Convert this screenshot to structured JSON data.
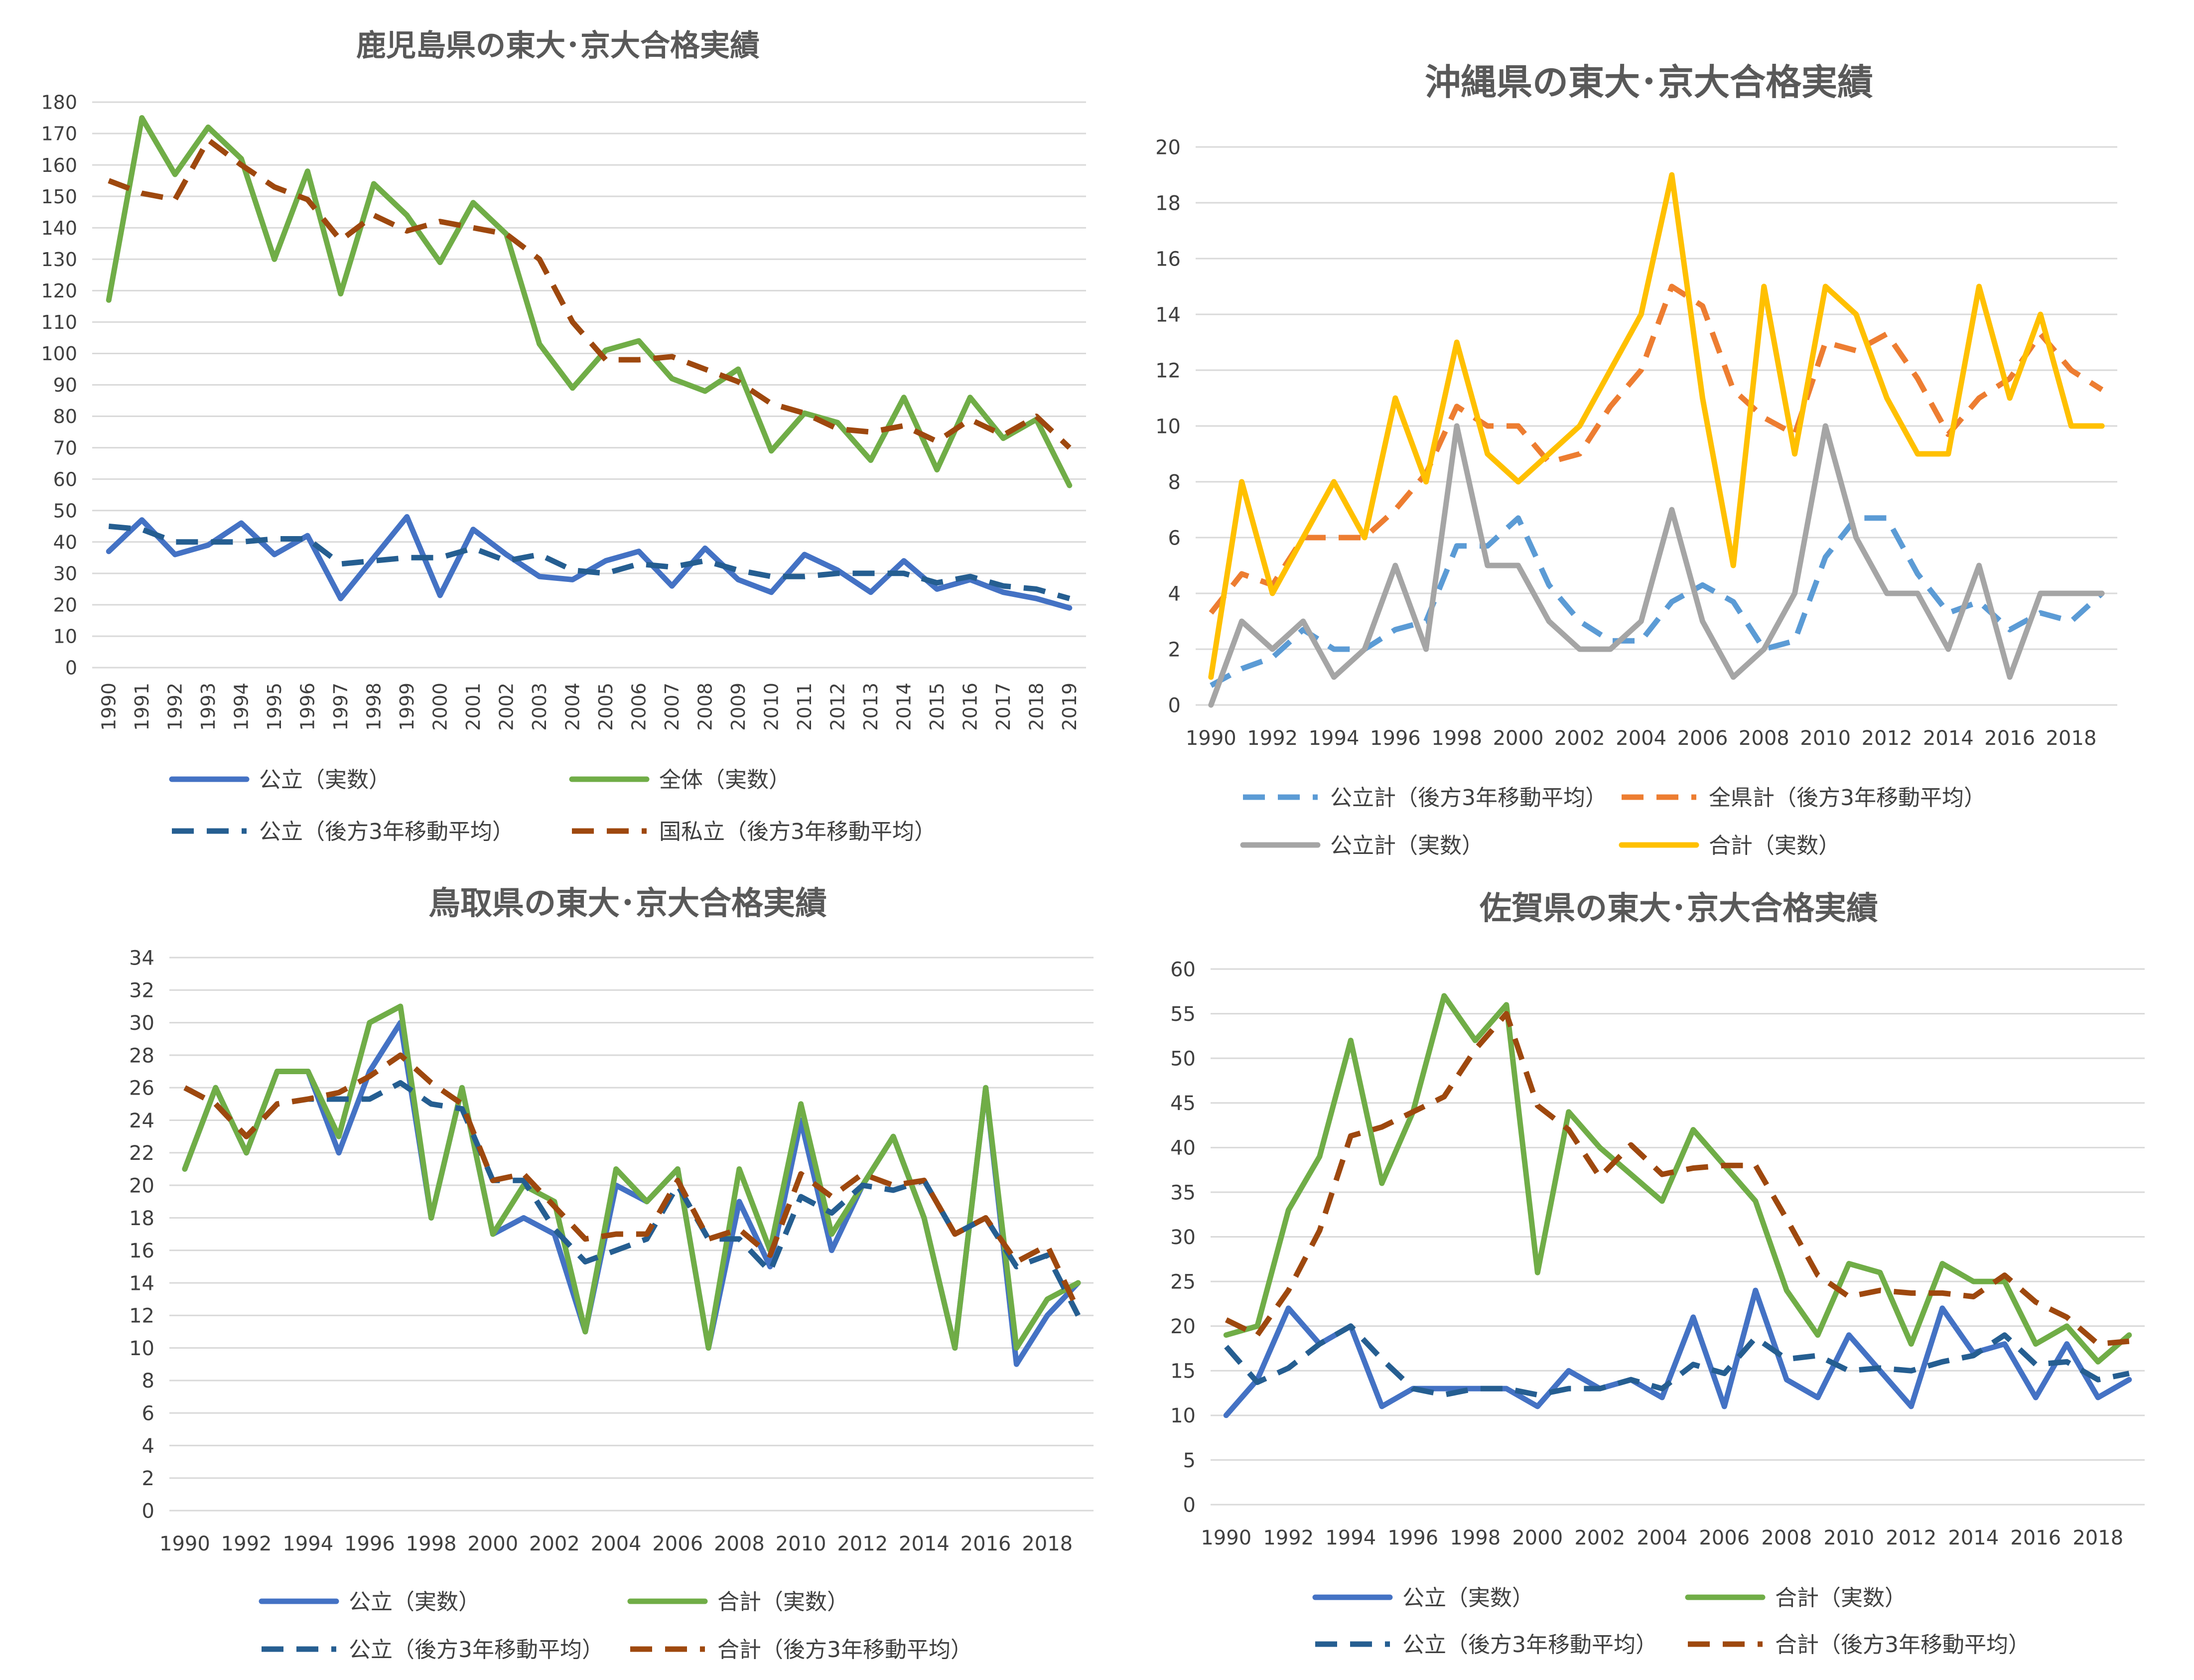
{
  "chart_data": [
    {
      "type": "line",
      "title": "鹿児島県の東大･京大合格実績",
      "x": [
        "1990",
        "1991",
        "1992",
        "1993",
        "1994",
        "1995",
        "1996",
        "1997",
        "1998",
        "1999",
        "2000",
        "2001",
        "2002",
        "2003",
        "2004",
        "2005",
        "2006",
        "2007",
        "2008",
        "2009",
        "2010",
        "2011",
        "2012",
        "2013",
        "2014",
        "2015",
        "2016",
        "2017",
        "2018",
        "2019"
      ],
      "x_tick_labels": [
        "1990",
        "1991",
        "1992",
        "1993",
        "1994",
        "1995",
        "1996",
        "1997",
        "1998",
        "1999",
        "2000",
        "2001",
        "2002",
        "2003",
        "2004",
        "2005",
        "2006",
        "2007",
        "2008",
        "2009",
        "2010",
        "2011",
        "2012",
        "2013",
        "2014",
        "2015",
        "2016",
        "2017",
        "2018",
        "2019"
      ],
      "y_ticks": [
        0,
        10,
        20,
        30,
        40,
        50,
        60,
        70,
        80,
        90,
        100,
        110,
        120,
        130,
        140,
        150,
        160,
        170,
        180
      ],
      "ylim": [
        0,
        180
      ],
      "grid": true,
      "legend_position": "bottom",
      "legend_columns": 2,
      "series": [
        {
          "name": "公立（実数）",
          "color": "#4472c4",
          "dash": "solid",
          "values": [
            37,
            47,
            36,
            39,
            46,
            36,
            42,
            22,
            35,
            48,
            23,
            44,
            36,
            29,
            28,
            34,
            37,
            26,
            38,
            28,
            24,
            36,
            31,
            24,
            34,
            25,
            28,
            24,
            22,
            19
          ]
        },
        {
          "name": "全体（実数）",
          "color": "#70ad47",
          "dash": "solid",
          "values": [
            117,
            175,
            157,
            172,
            162,
            130,
            158,
            119,
            154,
            144,
            129,
            148,
            138,
            103,
            89,
            101,
            104,
            92,
            88,
            95,
            69,
            81,
            78,
            66,
            86,
            63,
            86,
            73,
            79,
            58
          ]
        },
        {
          "name": "公立（後方3年移動平均）",
          "color": "#255e91",
          "dash": "dash",
          "values": [
            45,
            44,
            40,
            40,
            40,
            41,
            41,
            33,
            34,
            35,
            35,
            38,
            34,
            36,
            31,
            30,
            33,
            32,
            34,
            31,
            29,
            29,
            30,
            30,
            30,
            27,
            29,
            26,
            25,
            22
          ]
        },
        {
          "name": "国私立（後方3年移動平均）",
          "color": "#9e480e",
          "dash": "dash",
          "values": [
            155,
            151,
            149,
            168,
            160,
            153,
            149,
            136,
            144,
            139,
            142,
            140,
            138,
            130,
            110,
            98,
            98,
            99,
            95,
            91,
            84,
            81,
            76,
            75,
            77,
            72,
            79,
            74,
            80,
            70
          ]
        }
      ]
    },
    {
      "type": "line",
      "title": "沖縄県の東大･京大合格実績",
      "x": [
        "1990",
        "1991",
        "1992",
        "1993",
        "1994",
        "1995",
        "1996",
        "1997",
        "1998",
        "1999",
        "2000",
        "2001",
        "2002",
        "2003",
        "2004",
        "2005",
        "2006",
        "2007",
        "2008",
        "2009",
        "2010",
        "2011",
        "2012",
        "2013",
        "2014",
        "2015",
        "2016",
        "2017",
        "2018",
        "2019"
      ],
      "x_tick_labels": [
        "1990",
        "",
        "1992",
        "",
        "1994",
        "",
        "1996",
        "",
        "1998",
        "",
        "2000",
        "",
        "2002",
        "",
        "2004",
        "",
        "2006",
        "",
        "2008",
        "",
        "2010",
        "",
        "2012",
        "",
        "2014",
        "",
        "2016",
        "",
        "2018",
        ""
      ],
      "y_ticks": [
        0,
        2,
        4,
        6,
        8,
        10,
        12,
        14,
        16,
        18,
        20
      ],
      "ylim": [
        0,
        20
      ],
      "grid": true,
      "legend_position": "bottom",
      "legend_columns": 2,
      "series": [
        {
          "name": "公立計（後方3年移動平均）",
          "color": "#5b9bd5",
          "dash": "dash",
          "values": [
            0.7,
            1.3,
            1.7,
            2.7,
            2.0,
            2.0,
            2.7,
            3.0,
            5.7,
            5.7,
            6.7,
            4.3,
            3.0,
            2.3,
            2.3,
            3.7,
            4.3,
            3.7,
            2.0,
            2.3,
            5.3,
            6.7,
            6.7,
            4.7,
            3.3,
            3.7,
            2.7,
            3.3,
            3.0,
            4.0
          ]
        },
        {
          "name": "全県計（後方3年移動平均）",
          "color": "#ed7d31",
          "dash": "dash",
          "values": [
            3.3,
            4.7,
            4.3,
            6.0,
            6.0,
            6.0,
            7.0,
            8.3,
            10.7,
            10.0,
            10.0,
            8.7,
            9.0,
            10.7,
            12.0,
            15.0,
            14.3,
            11.3,
            10.3,
            9.7,
            13.0,
            12.7,
            13.3,
            11.7,
            9.7,
            11.0,
            11.7,
            13.3,
            12.0,
            11.3
          ]
        },
        {
          "name": "公立計（実数）",
          "color": "#a5a5a5",
          "dash": "solid",
          "values": [
            0,
            3,
            2,
            3,
            1,
            2,
            5,
            2,
            10,
            5,
            5,
            3,
            2,
            2,
            3,
            7,
            3,
            1,
            2,
            4,
            10,
            6,
            4,
            4,
            2,
            5,
            1,
            4,
            4,
            4
          ]
        },
        {
          "name": "合計（実数）",
          "color": "#ffc000",
          "dash": "solid",
          "values": [
            1,
            8,
            4,
            6,
            8,
            6,
            11,
            8,
            13,
            9,
            8,
            9,
            10,
            12,
            14,
            19,
            11,
            5,
            15,
            9,
            15,
            14,
            11,
            9,
            9,
            15,
            11,
            14,
            10,
            10
          ]
        }
      ]
    },
    {
      "type": "line",
      "title": "鳥取県の東大･京大合格実績",
      "x": [
        "1990",
        "1991",
        "1992",
        "1993",
        "1994",
        "1995",
        "1996",
        "1997",
        "1998",
        "1999",
        "2000",
        "2001",
        "2002",
        "2003",
        "2004",
        "2005",
        "2006",
        "2007",
        "2008",
        "2009",
        "2010",
        "2011",
        "2012",
        "2013",
        "2014",
        "2015",
        "2016",
        "2017",
        "2018",
        "2019"
      ],
      "x_tick_labels": [
        "1990",
        "",
        "1992",
        "",
        "1994",
        "",
        "1996",
        "",
        "1998",
        "",
        "2000",
        "",
        "2002",
        "",
        "2004",
        "",
        "2006",
        "",
        "2008",
        "",
        "2010",
        "",
        "2012",
        "",
        "2014",
        "",
        "2016",
        "",
        "2018",
        ""
      ],
      "y_ticks": [
        0,
        2,
        4,
        6,
        8,
        10,
        12,
        14,
        16,
        18,
        20,
        22,
        24,
        26,
        28,
        30,
        32,
        34
      ],
      "ylim": [
        0,
        34
      ],
      "grid": true,
      "legend_position": "bottom",
      "legend_columns": 2,
      "series": [
        {
          "name": "公立（実数）",
          "color": "#4472c4",
          "dash": "solid",
          "values": [
            21,
            26,
            22,
            27,
            27,
            22,
            27,
            30,
            18,
            26,
            17,
            18,
            17,
            11,
            20,
            19,
            21,
            10,
            19,
            15,
            24,
            16,
            20,
            23,
            18,
            10,
            26,
            9,
            12,
            14
          ]
        },
        {
          "name": "合計（実数）",
          "color": "#70ad47",
          "dash": "solid",
          "values": [
            21,
            26,
            22,
            27,
            27,
            23,
            30,
            31,
            18,
            26,
            17,
            20,
            19,
            11,
            21,
            19,
            21,
            10,
            21,
            16,
            25,
            17,
            20,
            23,
            18,
            10,
            26,
            10,
            13,
            14
          ]
        },
        {
          "name": "公立（後方3年移動平均）",
          "color": "#255e91",
          "dash": "dash",
          "values": [
            26,
            25,
            23,
            25,
            25.3,
            25.3,
            25.3,
            26.3,
            25,
            24.7,
            20.3,
            20.3,
            17.3,
            15.3,
            16,
            16.7,
            20,
            16.7,
            16.7,
            14.7,
            19.3,
            18.3,
            20,
            19.7,
            20.3,
            17,
            18,
            15,
            15.7,
            12
          ]
        },
        {
          "name": "合計（後方3年移動平均）",
          "color": "#9e480e",
          "dash": "dash",
          "values": [
            26,
            25,
            23,
            25,
            25.3,
            25.7,
            26.7,
            28,
            26.3,
            25,
            20.3,
            20.7,
            18.7,
            16.7,
            17,
            17,
            20.3,
            16.7,
            17.3,
            15.7,
            20.7,
            19.3,
            20.7,
            20,
            20.3,
            17,
            18,
            15.3,
            16.3,
            12.3
          ]
        }
      ]
    },
    {
      "type": "line",
      "title": "佐賀県の東大･京大合格実績",
      "x": [
        "1990",
        "1991",
        "1992",
        "1993",
        "1994",
        "1995",
        "1996",
        "1997",
        "1998",
        "1999",
        "2000",
        "2001",
        "2002",
        "2003",
        "2004",
        "2005",
        "2006",
        "2007",
        "2008",
        "2009",
        "2010",
        "2011",
        "2012",
        "2013",
        "2014",
        "2015",
        "2016",
        "2017",
        "2018",
        "2019"
      ],
      "x_tick_labels": [
        "1990",
        "",
        "1992",
        "",
        "1994",
        "",
        "1996",
        "",
        "1998",
        "",
        "2000",
        "",
        "2002",
        "",
        "2004",
        "",
        "2006",
        "",
        "2008",
        "",
        "2010",
        "",
        "2012",
        "",
        "2014",
        "",
        "2016",
        "",
        "2018",
        ""
      ],
      "y_ticks": [
        0,
        5,
        10,
        15,
        20,
        25,
        30,
        35,
        40,
        45,
        50,
        55,
        60
      ],
      "ylim": [
        0,
        60
      ],
      "grid": true,
      "legend_position": "bottom",
      "legend_columns": 2,
      "series": [
        {
          "name": "公立（実数）",
          "color": "#4472c4",
          "dash": "solid",
          "values": [
            10,
            14,
            22,
            18,
            20,
            11,
            13,
            13,
            13,
            13,
            11,
            15,
            13,
            14,
            12,
            21,
            11,
            24,
            14,
            12,
            19,
            15,
            11,
            22,
            17,
            18,
            12,
            18,
            12,
            14
          ]
        },
        {
          "name": "合計（実数）",
          "color": "#70ad47",
          "dash": "solid",
          "values": [
            19,
            20,
            33,
            39,
            52,
            36,
            44,
            57,
            52,
            56,
            26,
            44,
            40,
            37,
            34,
            42,
            38,
            34,
            24,
            19,
            27,
            26,
            18,
            27,
            25,
            25,
            18,
            20,
            16,
            19
          ]
        },
        {
          "name": "公立（後方3年移動平均）",
          "color": "#255e91",
          "dash": "dash",
          "values": [
            17.7,
            13.7,
            15.3,
            18,
            20,
            16.3,
            13,
            12.3,
            13,
            13,
            12.3,
            13,
            13,
            14,
            13,
            15.7,
            14.7,
            18.7,
            16.3,
            16.7,
            15,
            15.3,
            15,
            16,
            16.7,
            19,
            15.7,
            16,
            14,
            14.7
          ]
        },
        {
          "name": "合計（後方3年移動平均）",
          "color": "#9e480e",
          "dash": "dash",
          "values": [
            20.7,
            19,
            24,
            30.7,
            41.3,
            42.3,
            44,
            45.7,
            51,
            55,
            44.7,
            42,
            36.7,
            40.3,
            37,
            37.7,
            38,
            38,
            32,
            25.7,
            23.3,
            24,
            23.7,
            23.7,
            23.3,
            25.7,
            22.7,
            21,
            18,
            18.3
          ]
        }
      ]
    }
  ]
}
